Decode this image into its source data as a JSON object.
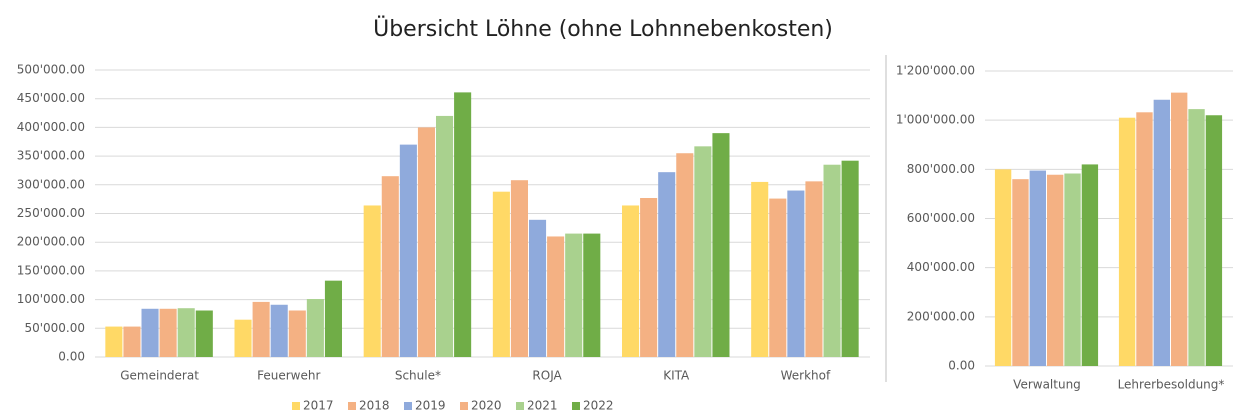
{
  "title": "Übersicht Löhne (ohne Lohnnebenkosten)",
  "chart_data": [
    {
      "type": "bar",
      "categories": [
        "Gemeinderat",
        "Feuerwehr",
        "Schule*",
        "ROJA",
        "KITA",
        "Werkhof"
      ],
      "series": [
        {
          "name": "2017",
          "color": "#ffd966",
          "values": [
            53000,
            65000,
            264000,
            288000,
            264000,
            305000
          ]
        },
        {
          "name": "2018",
          "color": "#f4b183",
          "values": [
            53000,
            96000,
            315000,
            308000,
            277000,
            276000
          ]
        },
        {
          "name": "2019",
          "color": "#8faadc",
          "values": [
            84000,
            91000,
            370000,
            239000,
            322000,
            290000
          ]
        },
        {
          "name": "2020",
          "color": "#f4b183",
          "values": [
            84000,
            81000,
            400000,
            210000,
            355000,
            306000
          ]
        },
        {
          "name": "2021",
          "color": "#a9d18e",
          "values": [
            85000,
            101000,
            420000,
            215000,
            367000,
            335000
          ]
        },
        {
          "name": "2022",
          "color": "#70ad47",
          "values": [
            81000,
            133000,
            461000,
            215000,
            390000,
            342000
          ]
        }
      ],
      "ylim": [
        0,
        500000
      ],
      "yticks": [
        {
          "value": 0,
          "label": "0.00"
        },
        {
          "value": 50000,
          "label": "50'000.00"
        },
        {
          "value": 100000,
          "label": "100'000.00"
        },
        {
          "value": 150000,
          "label": "150'000.00"
        },
        {
          "value": 200000,
          "label": "200'000.00"
        },
        {
          "value": 250000,
          "label": "250'000.00"
        },
        {
          "value": 300000,
          "label": "300'000.00"
        },
        {
          "value": 350000,
          "label": "350'000.00"
        },
        {
          "value": 400000,
          "label": "400'000.00"
        },
        {
          "value": 450000,
          "label": "450'000.00"
        },
        {
          "value": 500000,
          "label": "500'000.00"
        }
      ],
      "grid": true
    },
    {
      "type": "bar",
      "categories": [
        "Verwaltung",
        "Lehrerbesoldung*"
      ],
      "series": [
        {
          "color": "#ffd966",
          "values": [
            800000,
            1010000
          ]
        },
        {
          "color": "#f4b183",
          "values": [
            760000,
            1032000
          ]
        },
        {
          "color": "#8faadc",
          "values": [
            795000,
            1083000
          ]
        },
        {
          "color": "#f4b183",
          "values": [
            778000,
            1112000
          ]
        },
        {
          "color": "#a9d18e",
          "values": [
            783000,
            1045000
          ]
        },
        {
          "color": "#70ad47",
          "values": [
            820000,
            1020000
          ]
        }
      ],
      "ylim": [
        0,
        1200000
      ],
      "yticks": [
        {
          "value": 0,
          "label": "0.00"
        },
        {
          "value": 200000,
          "label": "200'000.00"
        },
        {
          "value": 400000,
          "label": "400'000.00"
        },
        {
          "value": 600000,
          "label": "600'000.00"
        },
        {
          "value": 800000,
          "label": "800'000.00"
        },
        {
          "value": 1000000,
          "label": "1'000'000.00"
        },
        {
          "value": 1200000,
          "label": "1'200'000.00"
        }
      ],
      "grid": true
    }
  ]
}
